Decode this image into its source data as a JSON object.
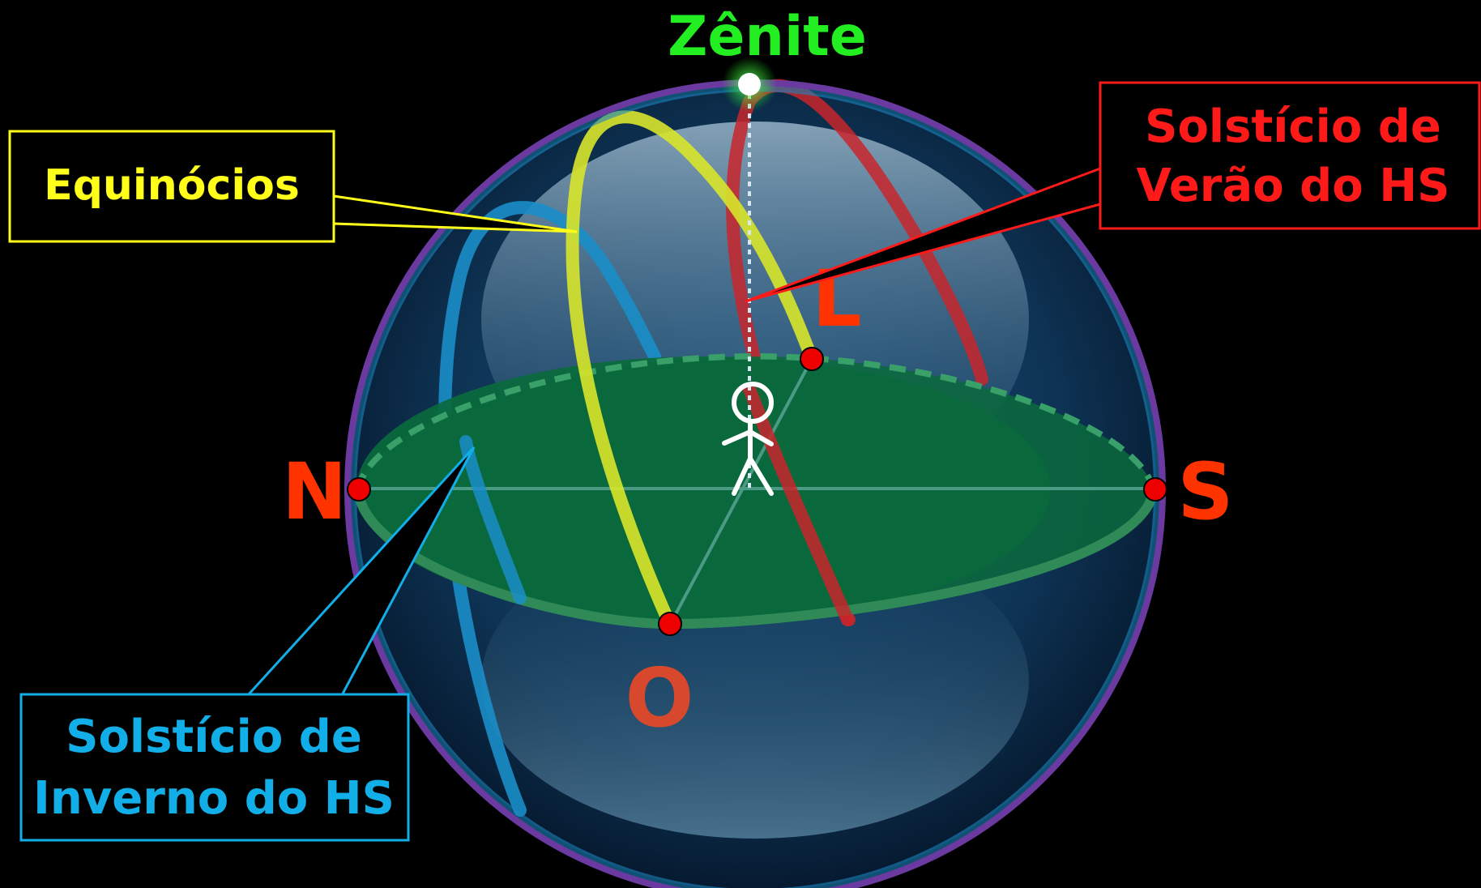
{
  "zenith": {
    "label": "Zênite",
    "color": "#22ee22"
  },
  "directions": {
    "north": "N",
    "south": "S",
    "east": "L",
    "west": "O",
    "color": "#ff3300"
  },
  "callouts": {
    "equinoxes": {
      "text": "Equinócios",
      "color": "#ffff1a"
    },
    "summer_solstice": {
      "lines": [
        "Solstício de",
        "Verão do HS"
      ],
      "color": "#ff1a1a"
    },
    "winter_solstice": {
      "lines": [
        "Solstício de",
        "Inverno do HS"
      ],
      "color": "#12aee8"
    }
  },
  "colors": {
    "background": "#000000",
    "horizon_plane": "#0a6a3c",
    "sphere_rim": "#6a3aa0",
    "equinox_path": "#d8e62a",
    "summer_path": "#c8262c",
    "winter_path": "#1a8ec8",
    "points": "#ee0000"
  },
  "figures": {
    "observer": "stick-figure-observer"
  }
}
